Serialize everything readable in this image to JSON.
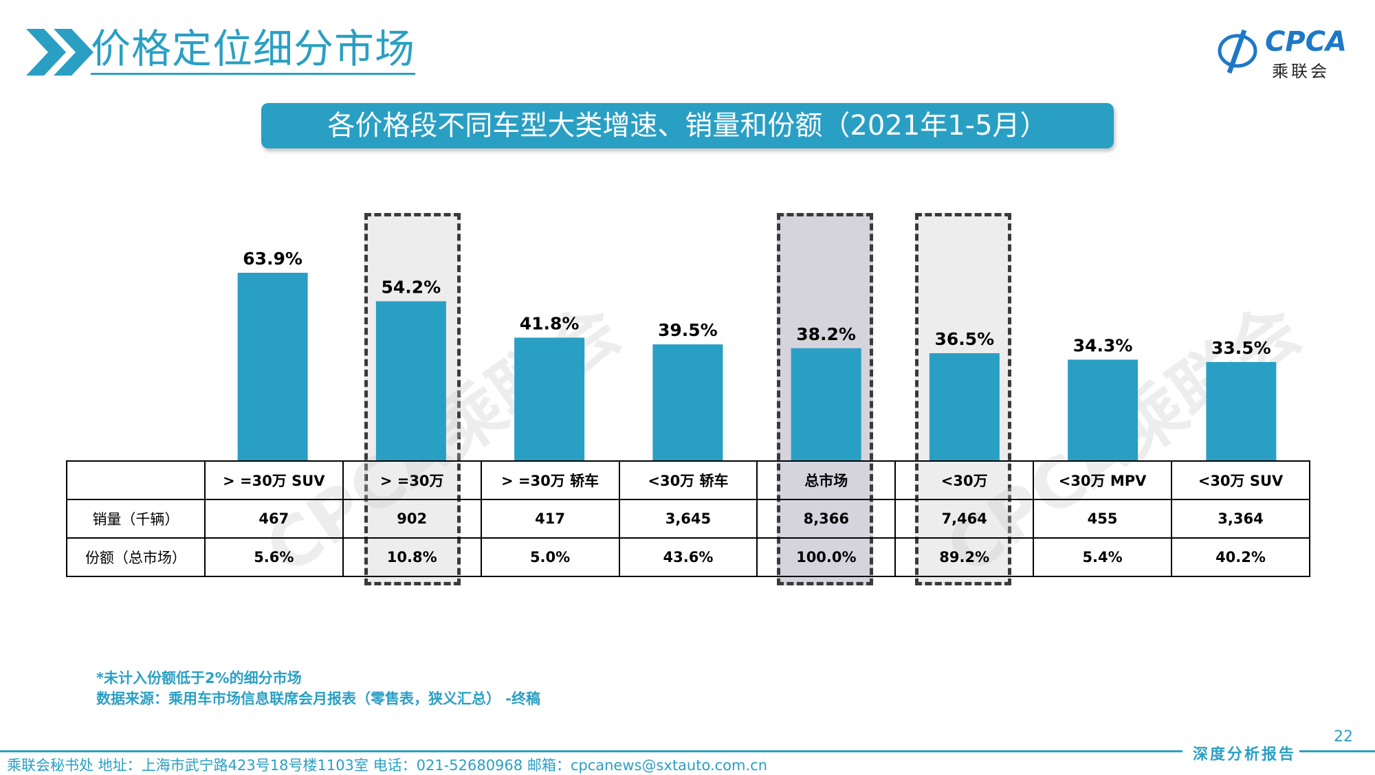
{
  "header": {
    "page_title": "价格定位细分市场",
    "logo_text": "CPCA",
    "logo_sub": "乘联会"
  },
  "banner": {
    "text": "各价格段不同车型大类增速、销量和份额（2021年1-5月）"
  },
  "watermark": "CPCA乘联会",
  "colors": {
    "accent": "#2a9fc4",
    "highlight_light": "#ededed",
    "highlight_dark": "#d5d3dc"
  },
  "chart_data": {
    "type": "bar",
    "categories": [
      ">=30万 SUV",
      ">=30万",
      ">=30万 轿车",
      "<30万 轿车",
      "总市场",
      "<30万",
      "<30万 MPV",
      "<30万 SUV"
    ],
    "values": [
      63.9,
      54.2,
      41.8,
      39.5,
      38.2,
      36.5,
      34.3,
      33.5
    ],
    "value_labels": [
      "63.9%",
      "54.2%",
      "41.8%",
      "39.5%",
      "38.2%",
      "36.5%",
      "34.3%",
      "33.5%"
    ],
    "unit": "%",
    "ylim": [
      0,
      70
    ],
    "highlighted": [
      ">=30万",
      "总市场",
      "<30万"
    ]
  },
  "table": {
    "header": [
      "",
      "> =30万 SUV",
      "> =30万",
      "> =30万 轿车",
      "<30万 轿车",
      "总市场",
      "<30万",
      "<30万 MPV",
      "<30万 SUV"
    ],
    "rows": [
      [
        "销量（千辆）",
        "467",
        "902",
        "417",
        "3,645",
        "8,366",
        "7,464",
        "455",
        "3,364"
      ],
      [
        "份额（总市场）",
        "5.6%",
        "10.8%",
        "5.0%",
        "43.6%",
        "100.0%",
        "89.2%",
        "5.4%",
        "40.2%"
      ]
    ]
  },
  "notes": {
    "line1": "*未计入份额低于2%的细分市场",
    "line2": "数据来源：乘用车市场信息联席会月报表（零售表，狭义汇总） -终稿"
  },
  "footer": {
    "page_number": "22",
    "report_label": "深度分析报告",
    "address": "乘联会秘书处   地址：上海市武宁路423号18号楼1103室   电话：021-52680968   邮箱：cpcanews@sxtauto.com.cn"
  }
}
